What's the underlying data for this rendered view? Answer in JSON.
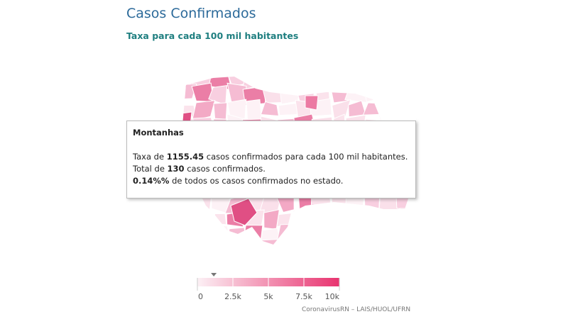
{
  "title": "Casos Confirmados",
  "subtitle": "Taxa para cada 100 mil habitantes",
  "tooltip": {
    "name": "Montanhas",
    "rate_before": "Taxa de",
    "rate": 1155.45,
    "rate_after": "casos confirmados para cada 100 mil habitantes.",
    "total_before": "Total de",
    "total": 130,
    "total_after": "casos confirmados.",
    "share": "0.14%%",
    "share_after": "de todos os casos confirmados no estado."
  },
  "legend": {
    "range": [
      0,
      10000
    ],
    "colors": [
      "#fcf0f5",
      "#e8336f"
    ],
    "ticks": [
      {
        "value": 0,
        "label": "0"
      },
      {
        "value": 2500,
        "label": "2.5k"
      },
      {
        "value": 5000,
        "label": "5k"
      },
      {
        "value": 7500,
        "label": "7.5k"
      },
      {
        "value": 10000,
        "label": "10k"
      }
    ]
  },
  "credit": "CoronavirusRN – LAIS/HUOL/UFRN"
}
